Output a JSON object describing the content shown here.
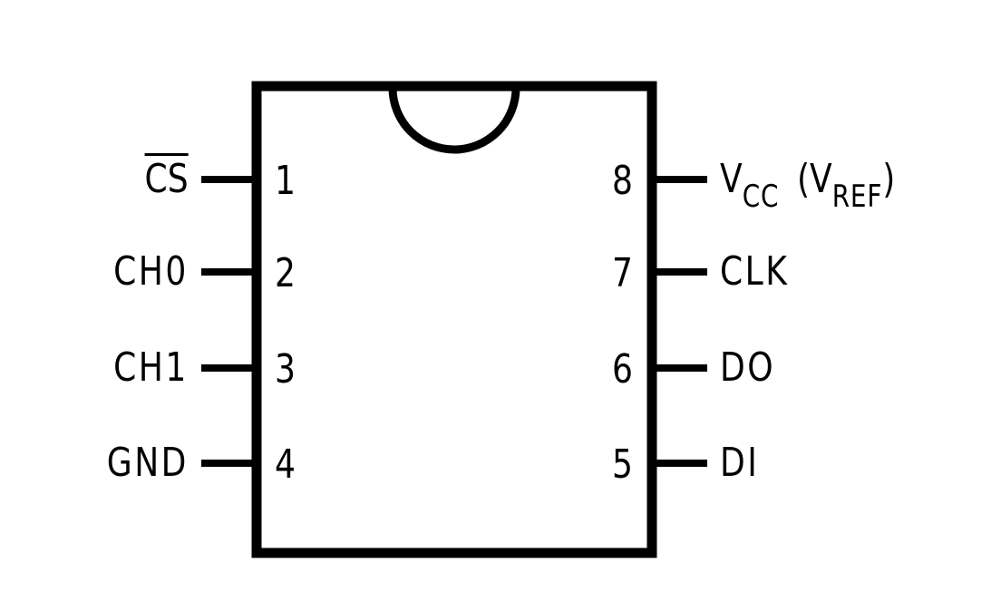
{
  "pins_left": [
    {
      "number": "1",
      "name": "CS",
      "active_low": true
    },
    {
      "number": "2",
      "name": "CH0"
    },
    {
      "number": "3",
      "name": "CH1"
    },
    {
      "number": "4",
      "name": "GND"
    }
  ],
  "pins_right": [
    {
      "number": "8",
      "name_main": "V",
      "name_sub": "CC",
      "paren_open": "(V",
      "paren_sub": "REF",
      "paren_close": ")"
    },
    {
      "number": "7",
      "name": "CLK"
    },
    {
      "number": "6",
      "name": "DO"
    },
    {
      "number": "5",
      "name": "DI"
    }
  ]
}
